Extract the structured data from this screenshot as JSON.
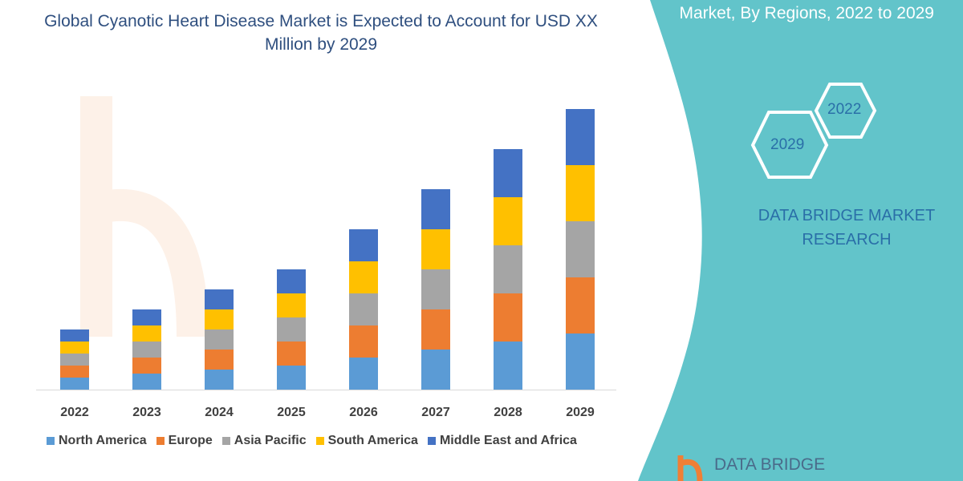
{
  "title": "Global Cyanotic Heart Disease Market is Expected to Account for USD XX Million by 2029",
  "side_panel": {
    "title": "Market, By Regions, 2022 to 2029",
    "hex_labels": [
      "2022",
      "2029"
    ],
    "brand": "DATA BRIDGE MARKET RESEARCH",
    "logo_text": "DATA BRIDGE",
    "background_color": "#62c4ca"
  },
  "chart_data": {
    "type": "bar",
    "stacked": true,
    "categories": [
      "2022",
      "2023",
      "2024",
      "2025",
      "2026",
      "2027",
      "2028",
      "2029"
    ],
    "series": [
      {
        "name": "North America",
        "color": "#5b9bd5",
        "values": [
          15,
          20,
          25,
          30,
          40,
          50,
          60,
          70
        ]
      },
      {
        "name": "Europe",
        "color": "#ed7d31",
        "values": [
          15,
          20,
          25,
          30,
          40,
          50,
          60,
          70
        ]
      },
      {
        "name": "Asia Pacific",
        "color": "#a5a5a5",
        "values": [
          15,
          20,
          25,
          30,
          40,
          50,
          60,
          70
        ]
      },
      {
        "name": "South America",
        "color": "#ffc000",
        "values": [
          15,
          20,
          25,
          30,
          40,
          50,
          60,
          70
        ]
      },
      {
        "name": "Middle East and Africa",
        "color": "#4472c4",
        "values": [
          15,
          20,
          25,
          30,
          40,
          50,
          60,
          70
        ]
      }
    ],
    "ylim": [
      0,
      350
    ],
    "y_axis_shown": false,
    "grid": false,
    "legend_placement": "bottom"
  }
}
